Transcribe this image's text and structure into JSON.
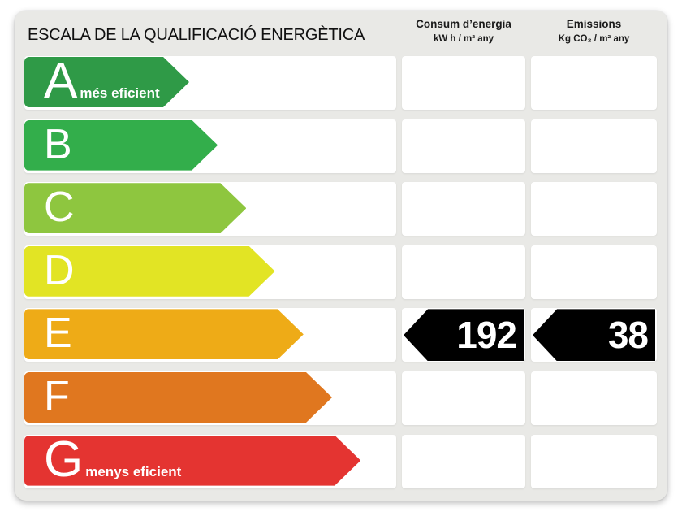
{
  "title": "ESCALA DE LA QUALIFICACIÓ ENERGÈTICA",
  "columns": {
    "consum": {
      "label": "Consum d’energia",
      "unit": "kW h / m² any"
    },
    "emissions": {
      "label": "Emissions",
      "unit": "Kg CO₂ / m² any"
    }
  },
  "scale": [
    {
      "letter": "A",
      "note": "més eficient",
      "color": "#2f9a47"
    },
    {
      "letter": "B",
      "note": "",
      "color": "#33ae4b"
    },
    {
      "letter": "C",
      "note": "",
      "color": "#8ec63f"
    },
    {
      "letter": "D",
      "note": "",
      "color": "#e2e424"
    },
    {
      "letter": "E",
      "note": "",
      "color": "#eeab17",
      "consum": "192",
      "emissions": "38"
    },
    {
      "letter": "F",
      "note": "",
      "color": "#e0771f"
    },
    {
      "letter": "G",
      "note": "menys eficient",
      "color": "#e43431"
    }
  ],
  "selected_rating": "E",
  "value_arrow_color": "#000000"
}
